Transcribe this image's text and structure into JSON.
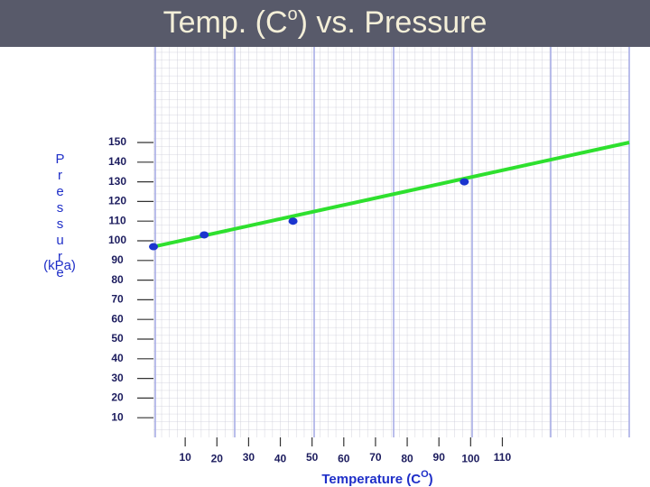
{
  "chart_data": {
    "type": "scatter",
    "title": "Temp. (C",
    "title_sup": "o",
    "title_end": ") vs. Pressure",
    "xlabel": "Temperature (C",
    "xlabel_sup": "O",
    "xlabel_end": ")",
    "ylabel": "Pressure",
    "ylabel_unit": "(kPa)",
    "x": [
      0,
      16,
      44,
      98
    ],
    "values": [
      97,
      103,
      110,
      130
    ],
    "color": "#1b35cf",
    "fit": {
      "x": [
        0,
        150
      ],
      "values": [
        97,
        150
      ],
      "color": "#2ee02e"
    },
    "xlim": [
      0,
      150
    ],
    "xticks": [
      10,
      20,
      30,
      40,
      50,
      60,
      70,
      80,
      90,
      100,
      110
    ],
    "ylim": [
      0,
      200
    ],
    "yticks": [
      10,
      20,
      30,
      40,
      50,
      60,
      70,
      80,
      90,
      100,
      110,
      120,
      130,
      140,
      150
    ],
    "grid": true
  }
}
